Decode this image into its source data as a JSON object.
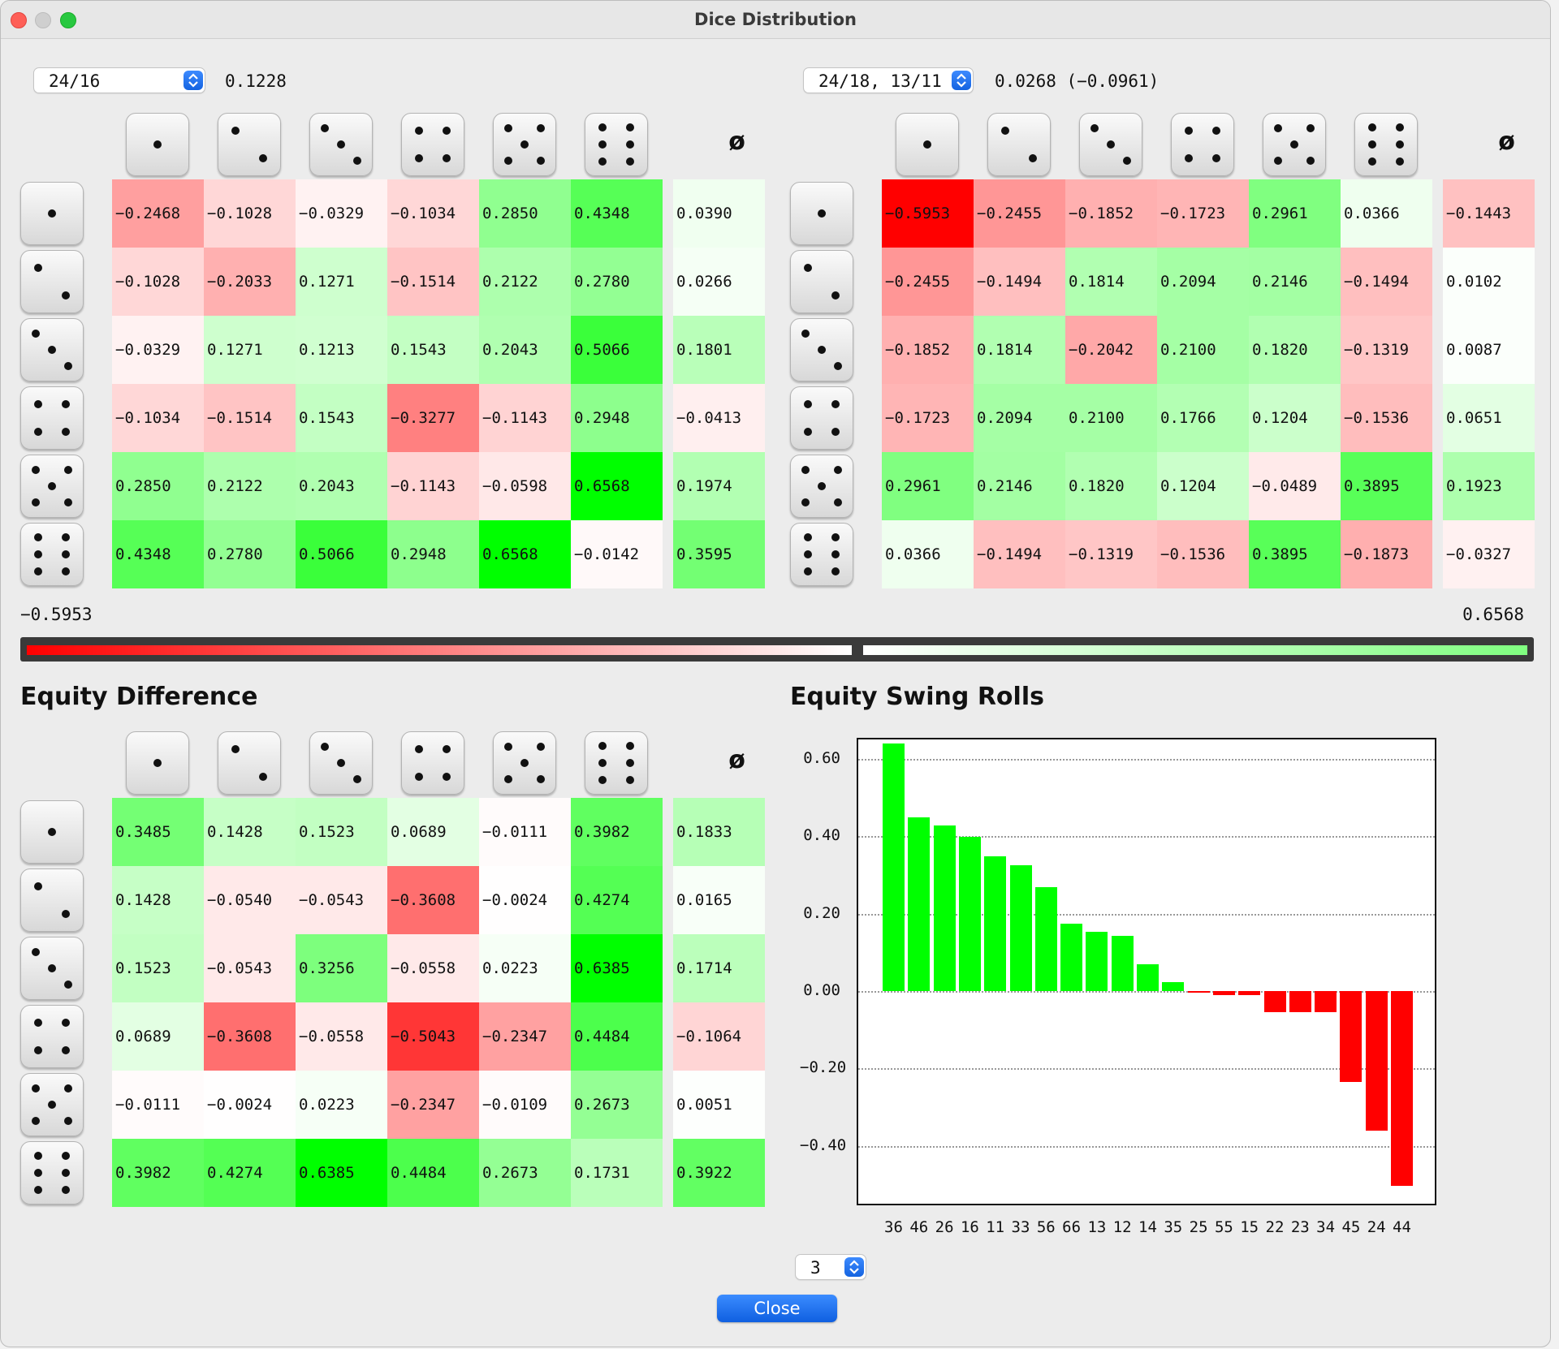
{
  "window": {
    "title": "Dice Distribution"
  },
  "left_panel": {
    "move_select": "24/16",
    "equity": "0.1228"
  },
  "right_panel": {
    "move_select": "24/18, 13/11",
    "equity": "0.0268 (−0.0961)"
  },
  "avg_symbol": "ø",
  "matrix_left": [
    [
      "−0.2468",
      "−0.1028",
      "−0.0329",
      "−0.1034",
      "0.2850",
      "0.4348",
      "0.0390"
    ],
    [
      "−0.1028",
      "−0.2033",
      "0.1271",
      "−0.1514",
      "0.2122",
      "0.2780",
      "0.0266"
    ],
    [
      "−0.0329",
      "0.1271",
      "0.1213",
      "0.1543",
      "0.2043",
      "0.5066",
      "0.1801"
    ],
    [
      "−0.1034",
      "−0.1514",
      "0.1543",
      "−0.3277",
      "−0.1143",
      "0.2948",
      "−0.0413"
    ],
    [
      "0.2850",
      "0.2122",
      "0.2043",
      "−0.1143",
      "−0.0598",
      "0.6568",
      "0.1974"
    ],
    [
      "0.4348",
      "0.2780",
      "0.5066",
      "0.2948",
      "0.6568",
      "−0.0142",
      "0.3595"
    ]
  ],
  "matrix_right": [
    [
      "−0.5953",
      "−0.2455",
      "−0.1852",
      "−0.1723",
      "0.2961",
      "0.0366",
      "−0.1443"
    ],
    [
      "−0.2455",
      "−0.1494",
      "0.1814",
      "0.2094",
      "0.2146",
      "−0.1494",
      "0.0102"
    ],
    [
      "−0.1852",
      "0.1814",
      "−0.2042",
      "0.2100",
      "0.1820",
      "−0.1319",
      "0.0087"
    ],
    [
      "−0.1723",
      "0.2094",
      "0.2100",
      "0.1766",
      "0.1204",
      "−0.1536",
      "0.0651"
    ],
    [
      "0.2961",
      "0.2146",
      "0.1820",
      "0.1204",
      "−0.0489",
      "0.3895",
      "0.1923"
    ],
    [
      "0.0366",
      "−0.1494",
      "−0.1319",
      "−0.1536",
      "0.3895",
      "−0.1873",
      "−0.0327"
    ]
  ],
  "matrix_diff": [
    [
      "0.3485",
      "0.1428",
      "0.1523",
      "0.0689",
      "−0.0111",
      "0.3982",
      "0.1833"
    ],
    [
      "0.1428",
      "−0.0540",
      "−0.0543",
      "−0.3608",
      "−0.0024",
      "0.4274",
      "0.0165"
    ],
    [
      "0.1523",
      "−0.0543",
      "0.3256",
      "−0.0558",
      "0.0223",
      "0.6385",
      "0.1714"
    ],
    [
      "0.0689",
      "−0.3608",
      "−0.0558",
      "−0.5043",
      "−0.2347",
      "0.4484",
      "−0.1064"
    ],
    [
      "−0.0111",
      "−0.0024",
      "0.0223",
      "−0.2347",
      "−0.0109",
      "0.2673",
      "0.0051"
    ],
    [
      "0.3982",
      "0.4274",
      "0.6385",
      "0.4484",
      "0.2673",
      "0.1731",
      "0.3922"
    ]
  ],
  "legend": {
    "min": "−0.5953",
    "max": "0.6568"
  },
  "sections": {
    "diff_title": "Equity Difference",
    "swing_title": "Equity Swing Rolls"
  },
  "colors": {
    "negative": "#ff0000",
    "positive": "#00ff00",
    "neutral": "#ffffff"
  },
  "chart_data": {
    "type": "bar",
    "title": "Equity Swing Rolls",
    "xlabel": "",
    "ylabel": "",
    "ylim": [
      -0.55,
      0.65
    ],
    "grid": true,
    "y_ticks": [
      "0.60",
      "0.40",
      "0.20",
      "0.00",
      "−0.20",
      "−0.40"
    ],
    "y_tick_values": [
      0.6,
      0.4,
      0.2,
      0.0,
      -0.2,
      -0.4
    ],
    "categories": [
      "36",
      "46",
      "26",
      "16",
      "11",
      "33",
      "56",
      "66",
      "13",
      "12",
      "14",
      "35",
      "25",
      "55",
      "15",
      "22",
      "23",
      "34",
      "45",
      "24",
      "44"
    ],
    "values": [
      0.6385,
      0.4484,
      0.4274,
      0.3982,
      0.3485,
      0.3256,
      0.2673,
      0.1731,
      0.1523,
      0.1428,
      0.0689,
      0.0223,
      -0.0024,
      -0.0109,
      -0.0111,
      -0.054,
      -0.0543,
      -0.0558,
      -0.2347,
      -0.3608,
      -0.5043
    ]
  },
  "controls": {
    "count_select": "3",
    "close_label": "Close"
  }
}
